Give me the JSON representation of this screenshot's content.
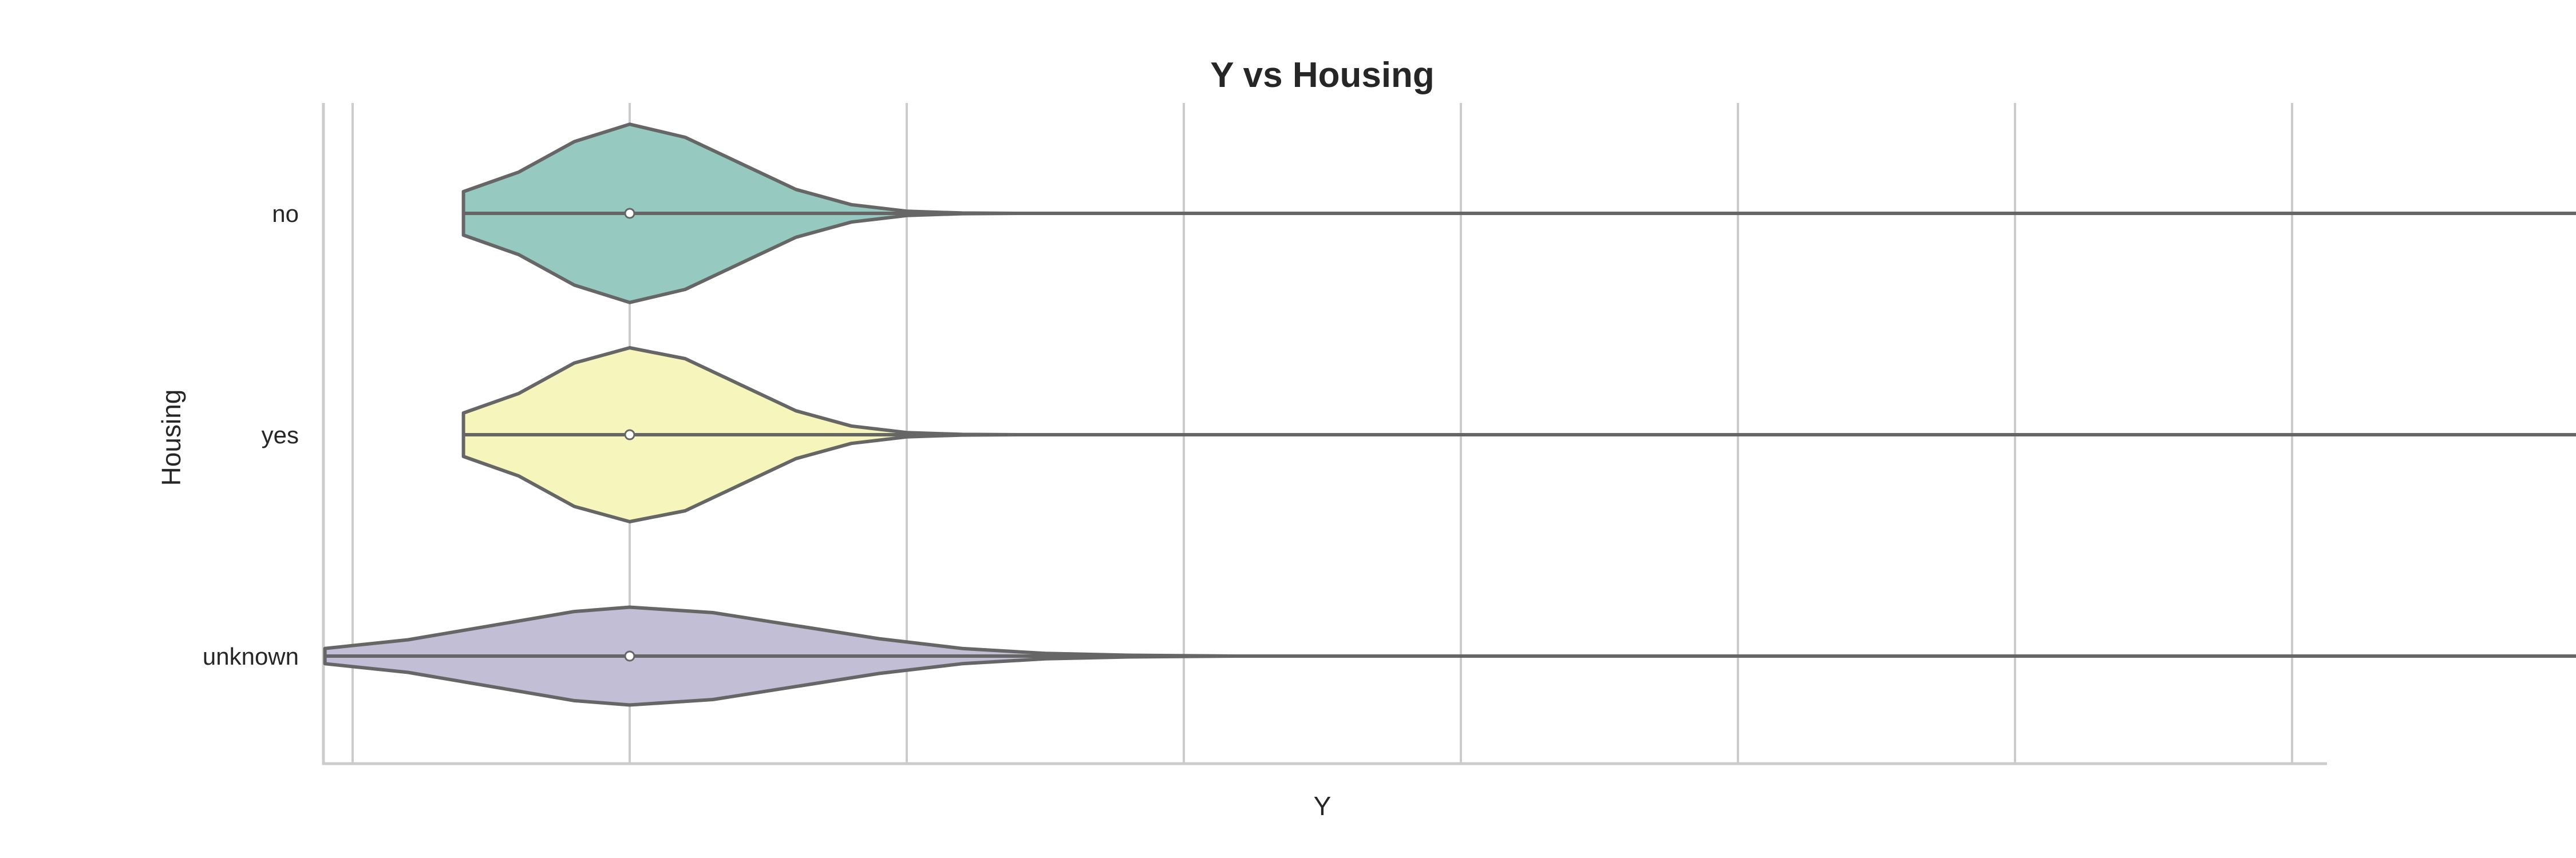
{
  "chart_data": {
    "type": "violin",
    "orientation": "horizontal",
    "title": "Y vs Housing",
    "xlabel": "Y",
    "ylabel": "Housing",
    "categories": [
      "no",
      "yes",
      "unknown"
    ],
    "xlim": [
      -0.11,
      1.11
    ],
    "x_gridlines": [
      -0.1,
      0,
      0.1,
      0.2,
      0.3,
      0.4,
      0.5,
      0.6,
      0.7,
      1.0
    ],
    "grid": true,
    "violins": [
      {
        "category": "no",
        "color": "#96cac1",
        "median": 0,
        "range": [
          -0.06,
          1.06
        ],
        "density": [
          [
            -0.06,
            0.2
          ],
          [
            -0.04,
            0.38
          ],
          [
            -0.02,
            0.66
          ],
          [
            0,
            0.82
          ],
          [
            0.02,
            0.7
          ],
          [
            0.04,
            0.46
          ],
          [
            0.06,
            0.22
          ],
          [
            0.08,
            0.08
          ],
          [
            0.1,
            0.02
          ],
          [
            0.12,
            0.003
          ],
          [
            0.14,
            0
          ],
          [
            0.9,
            0
          ],
          [
            0.92,
            0.01
          ],
          [
            0.96,
            0.05
          ],
          [
            1.0,
            0.1
          ],
          [
            1.04,
            0.05
          ],
          [
            1.06,
            0.03
          ]
        ]
      },
      {
        "category": "yes",
        "color": "#f6f6bc",
        "median": 0,
        "range": [
          -0.06,
          1.06
        ],
        "density": [
          [
            -0.06,
            0.2
          ],
          [
            -0.04,
            0.38
          ],
          [
            -0.02,
            0.66
          ],
          [
            0,
            0.8
          ],
          [
            0.02,
            0.7
          ],
          [
            0.04,
            0.46
          ],
          [
            0.06,
            0.22
          ],
          [
            0.08,
            0.08
          ],
          [
            0.1,
            0.02
          ],
          [
            0.12,
            0.003
          ],
          [
            0.14,
            0
          ],
          [
            0.9,
            0
          ],
          [
            0.92,
            0.01
          ],
          [
            0.96,
            0.05
          ],
          [
            1.0,
            0.1
          ],
          [
            1.04,
            0.05
          ],
          [
            1.06,
            0.03
          ]
        ]
      },
      {
        "category": "unknown",
        "color": "#c1bed6",
        "median": 0,
        "range": [
          -0.11,
          1.11
        ],
        "density": [
          [
            -0.11,
            0.07
          ],
          [
            -0.08,
            0.15
          ],
          [
            -0.05,
            0.28
          ],
          [
            -0.02,
            0.41
          ],
          [
            0,
            0.45
          ],
          [
            0.03,
            0.4
          ],
          [
            0.06,
            0.28
          ],
          [
            0.09,
            0.16
          ],
          [
            0.12,
            0.07
          ],
          [
            0.15,
            0.025
          ],
          [
            0.18,
            0.008
          ],
          [
            0.22,
            0
          ],
          [
            0.8,
            0
          ],
          [
            0.85,
            0.02
          ],
          [
            0.92,
            0.05
          ],
          [
            1.0,
            0.065
          ],
          [
            1.05,
            0.04
          ],
          [
            1.11,
            0.01
          ]
        ]
      }
    ]
  }
}
